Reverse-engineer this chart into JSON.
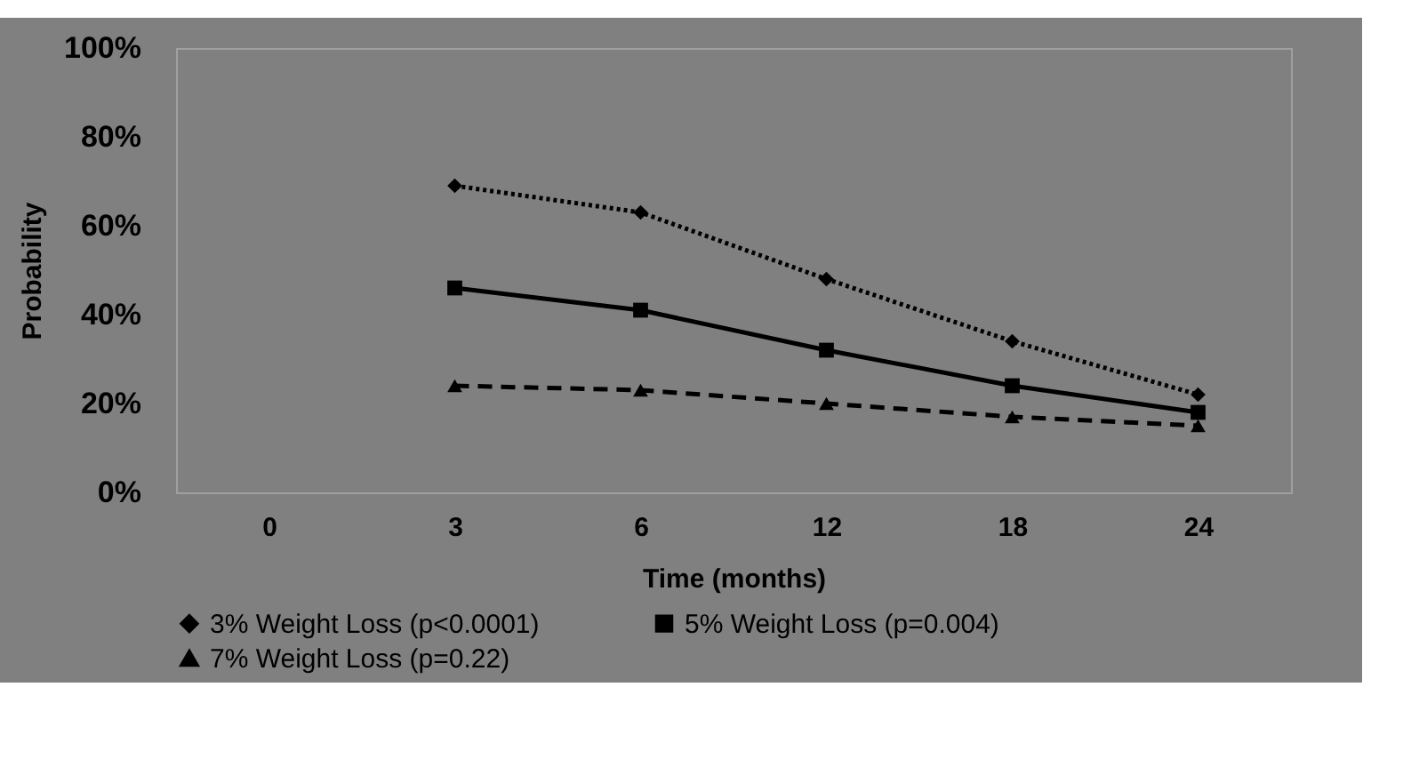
{
  "chart_data": {
    "type": "line",
    "xlabel": "Time (months)",
    "ylabel": "Probability",
    "categories": [
      "0",
      "3",
      "6",
      "12",
      "18",
      "24"
    ],
    "series": [
      {
        "name": "3% Weight Loss (p<0.0001)",
        "color": "#000000",
        "marker": "diamond",
        "line_style": "dotted",
        "values": [
          null,
          69,
          63,
          48,
          34,
          22
        ]
      },
      {
        "name": "5% Weight Loss (p=0.004)",
        "color": "#000000",
        "marker": "square",
        "line_style": "solid",
        "values": [
          null,
          46,
          41,
          32,
          24,
          18
        ]
      },
      {
        "name": "7% Weight Loss (p=0.22)",
        "color": "#000000",
        "marker": "triangle",
        "line_style": "dashed",
        "values": [
          null,
          24,
          23,
          20,
          17,
          15
        ]
      }
    ],
    "ylim": [
      0,
      100
    ],
    "yticks": [
      {
        "value": 0,
        "label": "0%"
      },
      {
        "value": 20,
        "label": "20%"
      },
      {
        "value": 40,
        "label": "40%"
      },
      {
        "value": 60,
        "label": "60%"
      },
      {
        "value": 80,
        "label": "80%"
      },
      {
        "value": 100,
        "label": "100%"
      }
    ],
    "grid": false,
    "legend": "bottom"
  }
}
